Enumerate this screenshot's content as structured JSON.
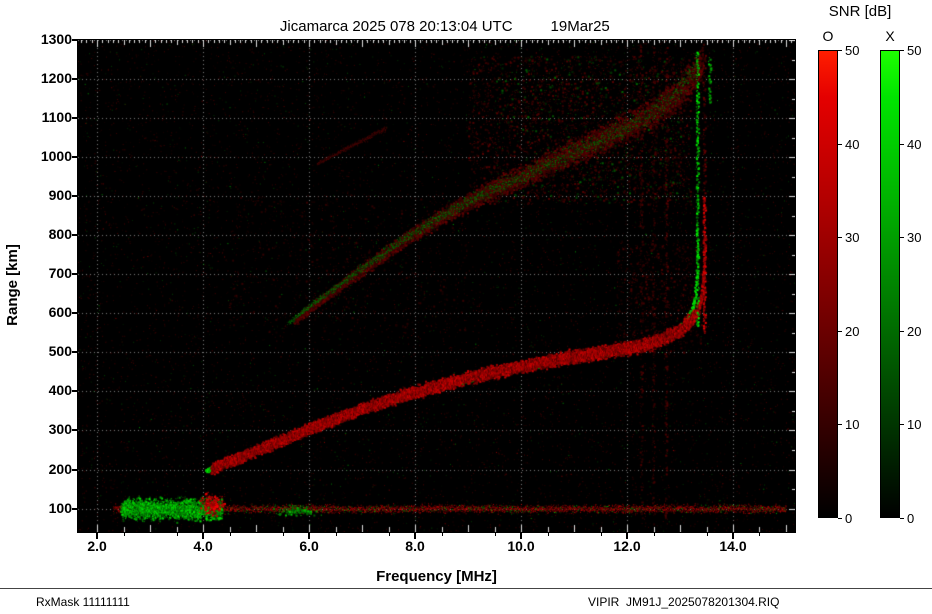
{
  "header": {
    "title": "Jicamarca 2025 078 20:13:04 UTC",
    "date": "19Mar25"
  },
  "footer": {
    "left": "RxMask 11111111",
    "right": "VIPIR  JM91J_2025078201304.RIQ"
  },
  "colorbar": {
    "title": "SNR [dB]",
    "min": 0,
    "max": 50,
    "tick_labels": [
      "50",
      "40",
      "30",
      "20",
      "10",
      "0"
    ],
    "bars": [
      {
        "label": "O",
        "channel": "r",
        "top_color": "#ff0000"
      },
      {
        "label": "X",
        "channel": "g",
        "top_color": "#00ff00"
      }
    ]
  },
  "chart_data": {
    "type": "heatmap",
    "title": "Jicamarca 2025 078 20:13:04 UTC 19Mar25",
    "xlabel": "Frequency [MHz]",
    "ylabel": "Range [km]",
    "xlim": [
      1.64,
      15.17
    ],
    "ylim": [
      40,
      1300
    ],
    "xtick_values": [
      2,
      4,
      6,
      8,
      10,
      12,
      14
    ],
    "xtick_labels": [
      "2.0",
      "4.0",
      "6.0",
      "8.0",
      "10.0",
      "12.0",
      "14.0"
    ],
    "ytick_values": [
      100,
      200,
      300,
      400,
      500,
      600,
      700,
      800,
      900,
      1000,
      1100,
      1200,
      1300
    ],
    "ytick_labels": [
      "100",
      "200",
      "300",
      "400",
      "500",
      "600",
      "700",
      "800",
      "900",
      "1000",
      "1100",
      "1200",
      "1300"
    ],
    "grid": true,
    "snr_scale_db": [
      0,
      50
    ],
    "colors": {
      "o_mode": "#ff0000",
      "x_mode": "#00ff00",
      "background": "#000000",
      "grid": "#c8c8c8"
    },
    "traces": [
      {
        "name": "f-region-x-mode",
        "channel": "g",
        "dot": 2,
        "density": 2,
        "offset_km": 0,
        "spread_km": [
          2.5,
          3.5
        ],
        "intensity": [
          0.55,
          1.0
        ],
        "points": [
          [
            4.05,
            198
          ],
          [
            4.5,
            222
          ],
          [
            5.0,
            250
          ],
          [
            5.5,
            278
          ],
          [
            6.0,
            305
          ],
          [
            6.5,
            331
          ],
          [
            7.0,
            356
          ],
          [
            7.5,
            378
          ],
          [
            8.0,
            398
          ],
          [
            8.5,
            417
          ],
          [
            9.0,
            434
          ],
          [
            9.5,
            449
          ],
          [
            10.0,
            463
          ],
          [
            10.5,
            476
          ],
          [
            11.0,
            487
          ],
          [
            11.5,
            498
          ],
          [
            12.0,
            509
          ],
          [
            12.3,
            519
          ],
          [
            12.6,
            533
          ],
          [
            12.9,
            553
          ],
          [
            13.1,
            578
          ],
          [
            13.2,
            603
          ],
          [
            13.27,
            640
          ],
          [
            13.31,
            700
          ],
          [
            13.33,
            772
          ]
        ]
      },
      {
        "name": "f-region-o-mode",
        "channel": "r",
        "dot": 2,
        "density": 4,
        "offset_km": 6,
        "spread_km": [
          6,
          8
        ],
        "intensity": [
          0.3,
          0.85
        ],
        "points": [
          [
            4.15,
            198
          ],
          [
            4.6,
            222
          ],
          [
            5.1,
            250
          ],
          [
            5.6,
            278
          ],
          [
            6.1,
            305
          ],
          [
            6.6,
            331
          ],
          [
            7.1,
            356
          ],
          [
            7.6,
            378
          ],
          [
            8.1,
            398
          ],
          [
            8.6,
            417
          ],
          [
            9.1,
            434
          ],
          [
            9.6,
            449
          ],
          [
            10.1,
            463
          ],
          [
            10.6,
            476
          ],
          [
            11.1,
            487
          ],
          [
            11.6,
            498
          ],
          [
            12.1,
            509
          ],
          [
            12.4,
            519
          ],
          [
            12.7,
            533
          ],
          [
            13.0,
            553
          ],
          [
            13.2,
            578
          ],
          [
            13.32,
            603
          ],
          [
            13.4,
            640
          ],
          [
            13.44,
            702
          ],
          [
            13.46,
            780
          ]
        ]
      },
      {
        "name": "second-hop-o-mode",
        "channel": "r",
        "dot": 2,
        "density": 3,
        "offset_km": 8,
        "spread_km": [
          4,
          20
        ],
        "intensity": [
          0.12,
          0.42
        ],
        "points": [
          [
            5.72,
            575
          ],
          [
            6.12,
            618
          ],
          [
            6.62,
            668
          ],
          [
            7.12,
            717
          ],
          [
            7.62,
            765
          ],
          [
            8.12,
            810
          ],
          [
            8.62,
            851
          ],
          [
            9.12,
            888
          ],
          [
            9.62,
            921
          ],
          [
            10.12,
            951
          ],
          [
            10.62,
            983
          ],
          [
            11.12,
            1014
          ],
          [
            11.62,
            1045
          ],
          [
            12.12,
            1079
          ],
          [
            12.52,
            1108
          ],
          [
            12.92,
            1148
          ],
          [
            13.22,
            1192
          ],
          [
            13.42,
            1238
          ]
        ]
      },
      {
        "name": "second-hop-x-mode",
        "channel": "g",
        "dot": 1,
        "density": 1,
        "offset_km": 0,
        "spread_km": [
          3,
          14
        ],
        "intensity": [
          0.15,
          0.55
        ],
        "points": [
          [
            5.6,
            575
          ],
          [
            6.0,
            618
          ],
          [
            6.5,
            668
          ],
          [
            7.0,
            717
          ],
          [
            7.5,
            765
          ],
          [
            8.0,
            810
          ],
          [
            8.5,
            851
          ],
          [
            9.0,
            888
          ],
          [
            9.5,
            921
          ],
          [
            10.0,
            951
          ],
          [
            10.5,
            983
          ],
          [
            11.0,
            1014
          ],
          [
            11.5,
            1045
          ],
          [
            12.0,
            1079
          ],
          [
            12.4,
            1108
          ],
          [
            12.8,
            1148
          ],
          [
            13.1,
            1192
          ],
          [
            13.3,
            1238
          ]
        ]
      },
      {
        "name": "upper-faint-streak",
        "channel": "r",
        "dot": 1,
        "density": 1,
        "offset_km": 0,
        "spread_km": [
          2,
          3
        ],
        "intensity": [
          0.15,
          0.35
        ],
        "points": [
          [
            6.15,
            985
          ],
          [
            7.45,
            1075
          ]
        ]
      }
    ],
    "vertical_interference": [
      {
        "f": 12.26,
        "h_range": [
          60,
          1290
        ],
        "channel": "r",
        "intensity": [
          0.1,
          0.3
        ],
        "density": 0.3
      },
      {
        "f": 12.49,
        "h_range": [
          60,
          1290
        ],
        "channel": "r",
        "intensity": [
          0.1,
          0.28
        ],
        "density": 0.25
      },
      {
        "f": 12.73,
        "h_range": [
          60,
          1290
        ],
        "channel": "r",
        "intensity": [
          0.12,
          0.35
        ],
        "density": 0.35
      },
      {
        "f": 13.32,
        "h_range": [
          570,
          1270
        ],
        "channel": "g",
        "intensity": [
          0.4,
          1.0
        ],
        "density": 0.75
      },
      {
        "f": 13.45,
        "h_range": [
          550,
          900
        ],
        "channel": "r",
        "intensity": [
          0.4,
          0.95
        ],
        "density": 0.9
      },
      {
        "f": 13.45,
        "h_range": [
          900,
          1270
        ],
        "channel": "r",
        "intensity": [
          0.15,
          0.4
        ],
        "density": 0.4
      },
      {
        "f": 13.55,
        "h_range": [
          1140,
          1260
        ],
        "channel": "g",
        "intensity": [
          0.3,
          0.8
        ],
        "density": 0.5
      }
    ],
    "noise_band": {
      "h_km": 100,
      "f_range": [
        2.3,
        15.0
      ],
      "spread_km": 5,
      "density": 2,
      "red_intensity": [
        0.2,
        0.8
      ],
      "green_fraction": 0.12
    },
    "green_patch": {
      "h_km": 100,
      "f_range": [
        2.45,
        4.35
      ],
      "spread_km": 12,
      "density": 5,
      "intensity": [
        0.25,
        0.95
      ]
    },
    "blobs": [
      {
        "f": 4.17,
        "h": 112,
        "f_spread": 0.1,
        "h_spread": 12,
        "count": 260,
        "channel": "r",
        "intensity": [
          0.4,
          1.0
        ]
      },
      {
        "f": 5.75,
        "h": 96,
        "f_spread": 0.18,
        "h_spread": 6,
        "count": 120,
        "channel": "g",
        "intensity": [
          0.3,
          0.8
        ]
      }
    ],
    "noise_regions": [
      {
        "f_range": [
          9.0,
          13.2
        ],
        "h_range": [
          880,
          1260
        ],
        "count": 2600,
        "channel": "r",
        "intensity": [
          0.08,
          0.35
        ]
      },
      {
        "f_range": [
          9.5,
          13.2
        ],
        "h_range": [
          880,
          1260
        ],
        "count": 500,
        "channel": "g",
        "intensity": [
          0.1,
          0.4
        ]
      },
      {
        "f_range": [
          11.8,
          13.4
        ],
        "h_range": [
          500,
          780
        ],
        "count": 600,
        "channel": "r",
        "intensity": [
          0.08,
          0.3
        ]
      },
      {
        "f_range": [
          4.5,
          9.0
        ],
        "h_range": [
          550,
          900
        ],
        "count": 500,
        "channel": "r",
        "intensity": [
          0.06,
          0.22
        ]
      }
    ],
    "background_noise": {
      "count": 9000,
      "red_fraction": 0.85,
      "intensity": [
        0.06,
        0.3
      ],
      "bright_count": 160,
      "bright_intensity": [
        0.35,
        0.6
      ]
    }
  }
}
